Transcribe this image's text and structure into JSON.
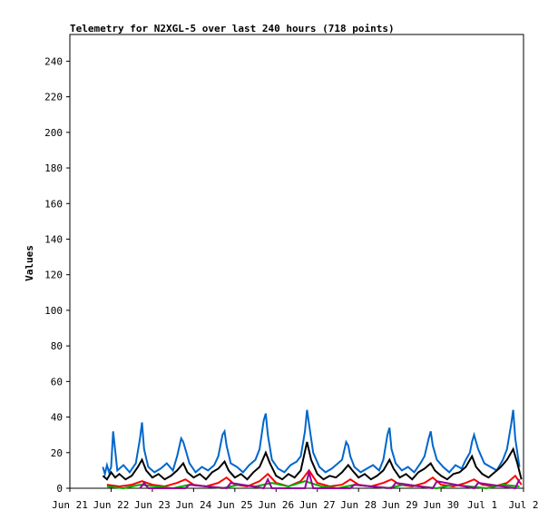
{
  "chart_data": {
    "type": "line",
    "title": "Telemetry for N2XGL-5 over last 240 hours (718 points)",
    "xlabel": "",
    "ylabel": "Values",
    "ylim": [
      0,
      255
    ],
    "yticks": [
      0,
      20,
      40,
      60,
      80,
      100,
      120,
      140,
      160,
      180,
      200,
      220,
      240
    ],
    "xlim_days": [
      0,
      11
    ],
    "xticks": [
      {
        "day": 0,
        "label": "Jun 21"
      },
      {
        "day": 1,
        "label": "Jun 22"
      },
      {
        "day": 2,
        "label": "Jun 23"
      },
      {
        "day": 3,
        "label": "Jun 24"
      },
      {
        "day": 4,
        "label": "Jun 25"
      },
      {
        "day": 5,
        "label": "Jun 26"
      },
      {
        "day": 6,
        "label": "Jun 27"
      },
      {
        "day": 7,
        "label": "Jun 28"
      },
      {
        "day": 8,
        "label": "Jun 29"
      },
      {
        "day": 9,
        "label": "Jun 30"
      },
      {
        "day": 10,
        "label": "Jul 1"
      },
      {
        "day": 11,
        "label": "Jul 2"
      }
    ],
    "grid": false,
    "legend": "none",
    "series": [
      {
        "color": "#0066cc",
        "x": [
          0.8,
          0.85,
          0.9,
          0.95,
          1.0,
          1.05,
          1.15,
          1.3,
          1.45,
          1.6,
          1.7,
          1.75,
          1.8,
          1.9,
          2.05,
          2.2,
          2.35,
          2.5,
          2.6,
          2.7,
          2.75,
          2.8,
          2.9,
          3.05,
          3.2,
          3.35,
          3.5,
          3.6,
          3.7,
          3.75,
          3.8,
          3.9,
          4.05,
          4.2,
          4.35,
          4.5,
          4.6,
          4.7,
          4.75,
          4.8,
          4.9,
          5.05,
          5.2,
          5.35,
          5.5,
          5.6,
          5.7,
          5.75,
          5.8,
          5.9,
          6.05,
          6.2,
          6.35,
          6.5,
          6.6,
          6.7,
          6.75,
          6.8,
          6.9,
          7.05,
          7.2,
          7.35,
          7.5,
          7.6,
          7.7,
          7.75,
          7.8,
          7.9,
          8.05,
          8.2,
          8.35,
          8.5,
          8.6,
          8.7,
          8.75,
          8.8,
          8.9,
          9.05,
          9.2,
          9.35,
          9.5,
          9.6,
          9.7,
          9.75,
          9.8,
          9.9,
          10.05,
          10.2,
          10.35,
          10.5,
          10.6,
          10.7,
          10.75,
          10.8,
          10.9
        ],
        "y": [
          12,
          8,
          13,
          9,
          12,
          32,
          10,
          13,
          9,
          14,
          28,
          37,
          22,
          12,
          9,
          11,
          14,
          10,
          18,
          28,
          26,
          22,
          14,
          9,
          12,
          10,
          13,
          18,
          30,
          32,
          24,
          14,
          12,
          9,
          13,
          16,
          22,
          38,
          42,
          30,
          16,
          11,
          9,
          13,
          15,
          18,
          32,
          44,
          36,
          20,
          12,
          9,
          11,
          14,
          16,
          26,
          24,
          18,
          12,
          9,
          11,
          13,
          10,
          16,
          30,
          34,
          22,
          14,
          10,
          12,
          9,
          14,
          18,
          28,
          32,
          24,
          16,
          12,
          9,
          13,
          11,
          16,
          20,
          26,
          30,
          22,
          14,
          12,
          10,
          16,
          22,
          36,
          44,
          28,
          12
        ]
      },
      {
        "color": "#000000",
        "x": [
          0.8,
          0.9,
          1.0,
          1.1,
          1.2,
          1.35,
          1.5,
          1.65,
          1.75,
          1.85,
          2.0,
          2.15,
          2.3,
          2.45,
          2.6,
          2.75,
          2.85,
          3.0,
          3.15,
          3.3,
          3.45,
          3.6,
          3.75,
          3.85,
          4.0,
          4.15,
          4.3,
          4.45,
          4.6,
          4.75,
          4.85,
          5.0,
          5.15,
          5.3,
          5.45,
          5.6,
          5.75,
          5.85,
          6.0,
          6.15,
          6.3,
          6.45,
          6.6,
          6.75,
          6.85,
          7.0,
          7.15,
          7.3,
          7.45,
          7.6,
          7.75,
          7.85,
          8.0,
          8.15,
          8.3,
          8.45,
          8.6,
          8.75,
          8.85,
          9.0,
          9.15,
          9.3,
          9.45,
          9.6,
          9.75,
          9.85,
          10.0,
          10.15,
          10.3,
          10.45,
          10.6,
          10.75,
          10.85,
          10.95
        ],
        "y": [
          7,
          5,
          9,
          6,
          8,
          5,
          7,
          12,
          16,
          10,
          6,
          8,
          5,
          7,
          10,
          14,
          9,
          6,
          8,
          5,
          9,
          11,
          15,
          10,
          6,
          8,
          5,
          9,
          12,
          20,
          14,
          7,
          5,
          8,
          6,
          10,
          26,
          16,
          8,
          5,
          7,
          6,
          9,
          13,
          10,
          6,
          8,
          5,
          7,
          10,
          16,
          11,
          6,
          8,
          5,
          9,
          11,
          14,
          10,
          7,
          5,
          8,
          9,
          12,
          18,
          12,
          8,
          6,
          9,
          12,
          16,
          22,
          14,
          5
        ]
      },
      {
        "color": "#ff0000",
        "x": [
          0.9,
          1.2,
          1.5,
          1.75,
          2.0,
          2.3,
          2.6,
          2.8,
          3.0,
          3.3,
          3.6,
          3.8,
          4.0,
          4.3,
          4.6,
          4.8,
          5.0,
          5.3,
          5.6,
          5.8,
          6.0,
          6.3,
          6.6,
          6.8,
          7.0,
          7.3,
          7.6,
          7.8,
          8.0,
          8.3,
          8.6,
          8.8,
          9.0,
          9.3,
          9.6,
          9.8,
          10.0,
          10.3,
          10.6,
          10.8,
          10.95
        ],
        "y": [
          2,
          1,
          2,
          4,
          2,
          1,
          3,
          5,
          2,
          1,
          3,
          6,
          2,
          1,
          4,
          8,
          3,
          1,
          4,
          10,
          3,
          1,
          2,
          5,
          2,
          1,
          3,
          5,
          2,
          1,
          3,
          6,
          2,
          1,
          3,
          5,
          2,
          1,
          3,
          7,
          2
        ]
      },
      {
        "color": "#00aa00",
        "x": [
          0.9,
          1.3,
          1.7,
          2.1,
          2.5,
          2.9,
          3.3,
          3.7,
          4.1,
          4.5,
          4.9,
          5.3,
          5.7,
          6.1,
          6.5,
          6.9,
          7.3,
          7.7,
          8.1,
          8.5,
          8.9,
          9.3,
          9.7,
          10.1,
          10.5,
          10.9
        ],
        "y": [
          1,
          0,
          2,
          1,
          0,
          2,
          1,
          0,
          2,
          1,
          3,
          1,
          4,
          1,
          0,
          2,
          1,
          0,
          2,
          1,
          0,
          2,
          1,
          0,
          2,
          1
        ]
      },
      {
        "color": "#990099",
        "x": [
          1.7,
          1.8,
          1.9,
          2.8,
          2.9,
          3.8,
          3.9,
          4.7,
          4.8,
          4.9,
          5.7,
          5.8,
          5.9,
          6.8,
          6.9,
          7.8,
          7.9,
          8.8,
          8.9,
          9.8,
          9.9,
          10.8,
          10.9
        ],
        "y": [
          0,
          3,
          0,
          0,
          2,
          0,
          3,
          0,
          5,
          0,
          0,
          9,
          0,
          0,
          2,
          0,
          3,
          0,
          4,
          0,
          3,
          0,
          5
        ]
      }
    ]
  }
}
